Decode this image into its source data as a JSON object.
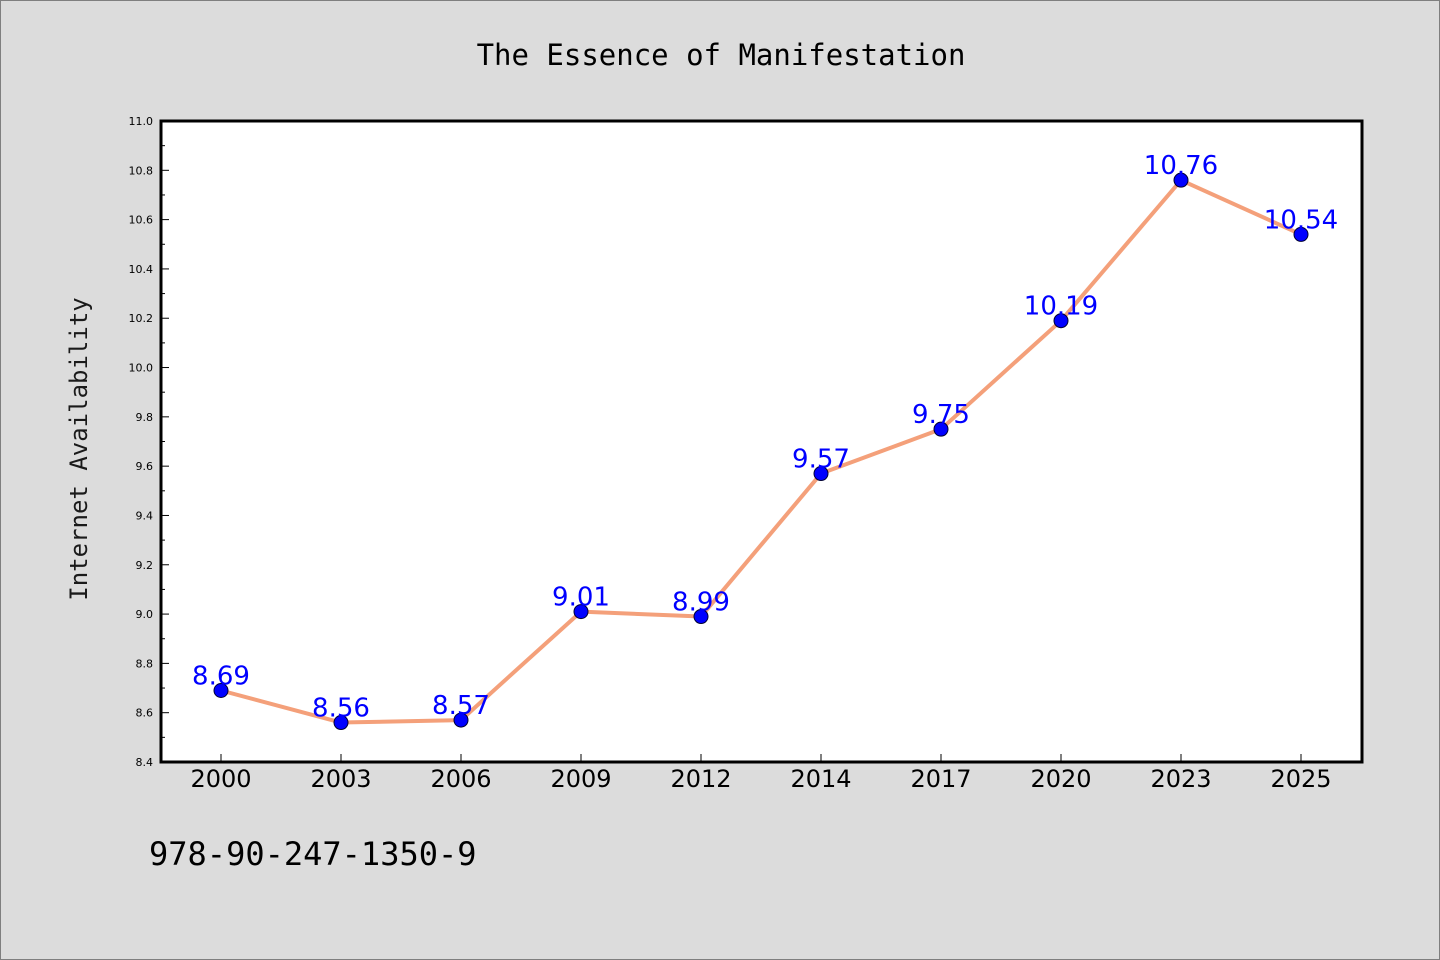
{
  "figure": {
    "background": "#dcdcdc",
    "footer_text": "978-90-247-1350-9"
  },
  "chart_data": {
    "type": "line",
    "title": "The Essence of Manifestation",
    "xlabel": "",
    "ylabel": "Internet Availability",
    "categories": [
      "2000",
      "2003",
      "2006",
      "2009",
      "2012",
      "2014",
      "2017",
      "2020",
      "2023",
      "2025"
    ],
    "series": [
      {
        "values": [
          8.69,
          8.56,
          8.57,
          9.01,
          8.99,
          9.57,
          9.75,
          10.19,
          10.76,
          10.54
        ],
        "line_color": "#f4a07a",
        "marker_color": "#0000ff",
        "label_color": "#0000ff"
      }
    ],
    "data_labels": [
      "8.69",
      "8.56",
      "8.57",
      "9.01",
      "8.99",
      "9.57",
      "9.75",
      "10.19",
      "10.76",
      "10.54"
    ],
    "ylim": [
      8.4,
      11.0
    ],
    "yticks": [
      "8.4",
      "8.6",
      "8.8",
      "9.0",
      "9.2",
      "9.4",
      "9.6",
      "9.8",
      "10.0",
      "10.2",
      "10.4",
      "10.6",
      "10.8",
      "11.0"
    ],
    "grid": false,
    "legend": "none",
    "plot_background": "#ffffff"
  }
}
